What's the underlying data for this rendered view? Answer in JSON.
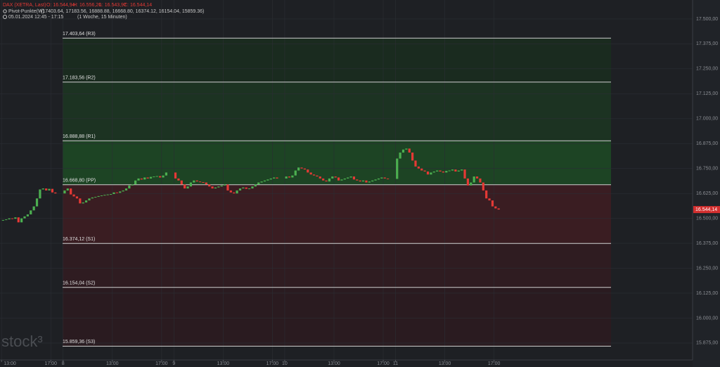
{
  "header": {
    "symbol": "DAX (XETRA, Last)",
    "open": "O: 16.544,94",
    "high": "H: 16.556,20",
    "low": "L: 16.543,97",
    "close": "C: 16.544,14",
    "indicator": "Pivot-Punkte(W)",
    "indicator_values": "(17403.64, 17183.56, 16888.88, 16668.80, 16374.12, 16154.04, 15859.36)",
    "range": "05.01.2024 12:45 - 17:15",
    "interval": "(1 Woche, 15 Minuten)",
    "watermark": "stock³"
  },
  "chart_data": {
    "type": "candlestick",
    "up_color": "#4caf50",
    "down_color": "#e53935",
    "xlim": [
      0,
      225
    ],
    "ylim": [
      15790,
      17595
    ],
    "xticks": [
      {
        "value": 0.5,
        "label": "13:00"
      },
      {
        "value": 16.5,
        "label": "17:00"
      },
      {
        "value": 20.5,
        "label": "8"
      },
      {
        "value": 36.5,
        "label": "13:00"
      },
      {
        "value": 52.5,
        "label": "17:00"
      },
      {
        "value": 56.5,
        "label": "9"
      },
      {
        "value": 72.5,
        "label": "13:00"
      },
      {
        "value": 88.5,
        "label": "17:00"
      },
      {
        "value": 92.5,
        "label": "10"
      },
      {
        "value": 108.5,
        "label": "13:00"
      },
      {
        "value": 124.5,
        "label": "17:00"
      },
      {
        "value": 128.5,
        "label": "11"
      },
      {
        "value": 144.5,
        "label": "13:00"
      },
      {
        "value": 160.5,
        "label": "17:00"
      }
    ],
    "yticks": [
      {
        "value": 17500,
        "label": "17.500,00"
      },
      {
        "value": 17375,
        "label": "17.375,00"
      },
      {
        "value": 17250,
        "label": "17.250,00"
      },
      {
        "value": 17125,
        "label": "17.125,00"
      },
      {
        "value": 17000,
        "label": "17.000,00"
      },
      {
        "value": 16875,
        "label": "16.875,00"
      },
      {
        "value": 16750,
        "label": "16.750,00"
      },
      {
        "value": 16625,
        "label": "16.625,00"
      },
      {
        "value": 16500,
        "label": "16.500,00"
      },
      {
        "value": 16375,
        "label": "16.375,00"
      },
      {
        "value": 16250,
        "label": "16.250,00"
      },
      {
        "value": 16125,
        "label": "16.125,00"
      },
      {
        "value": 16000,
        "label": "16.000,00"
      },
      {
        "value": 15875,
        "label": "15.875,00"
      }
    ],
    "grid": true,
    "x": [
      0,
      1,
      2,
      3,
      4,
      5,
      6,
      7,
      8,
      9,
      10,
      11,
      12,
      13,
      14,
      15,
      16,
      17,
      18,
      21,
      22,
      23,
      24,
      25,
      26,
      27,
      28,
      29,
      30,
      31,
      32,
      33,
      34,
      35,
      36,
      37,
      38,
      39,
      40,
      41,
      42,
      43,
      44,
      45,
      46,
      47,
      48,
      49,
      50,
      51,
      52,
      53,
      54,
      57,
      58,
      59,
      60,
      61,
      62,
      63,
      64,
      65,
      66,
      67,
      68,
      69,
      70,
      71,
      72,
      73,
      74,
      75,
      76,
      77,
      78,
      79,
      80,
      81,
      82,
      83,
      84,
      85,
      86,
      87,
      88,
      89,
      90,
      93,
      94,
      95,
      96,
      97,
      98,
      99,
      100,
      101,
      102,
      103,
      104,
      105,
      106,
      107,
      108,
      109,
      110,
      111,
      112,
      113,
      114,
      115,
      116,
      117,
      118,
      119,
      120,
      121,
      122,
      123,
      124,
      125,
      126,
      129,
      130,
      131,
      132,
      133,
      134,
      135,
      136,
      137,
      138,
      139,
      140,
      141,
      142,
      143,
      144,
      145,
      146,
      147,
      148,
      149,
      150,
      151,
      152,
      153,
      154,
      155,
      156,
      157,
      158,
      159,
      160,
      161,
      162
    ],
    "close": [
      16490,
      16492,
      16495,
      16500,
      16498,
      16505,
      16480,
      16500,
      16510,
      16520,
      16540,
      16560,
      16600,
      16645,
      16650,
      16640,
      16648,
      16630,
      16625,
      16640,
      16650,
      16620,
      16610,
      16600,
      16575,
      16580,
      16590,
      16600,
      16605,
      16608,
      16612,
      16615,
      16618,
      16620,
      16622,
      16630,
      16628,
      16635,
      16640,
      16650,
      16665,
      16670,
      16690,
      16700,
      16695,
      16705,
      16700,
      16708,
      16710,
      16712,
      16705,
      16715,
      16730,
      16700,
      16690,
      16670,
      16650,
      16660,
      16680,
      16690,
      16685,
      16682,
      16680,
      16670,
      16660,
      16650,
      16655,
      16660,
      16665,
      16670,
      16640,
      16630,
      16625,
      16640,
      16650,
      16655,
      16648,
      16650,
      16660,
      16670,
      16680,
      16685,
      16690,
      16695,
      16700,
      16705,
      16700,
      16710,
      16705,
      16715,
      16740,
      16755,
      16750,
      16745,
      16730,
      16720,
      16715,
      16710,
      16700,
      16690,
      16685,
      16700,
      16710,
      16705,
      16690,
      16695,
      16700,
      16705,
      16710,
      16695,
      16690,
      16685,
      16690,
      16680,
      16685,
      16690,
      16695,
      16700,
      16705,
      16700,
      16698,
      16800,
      16830,
      16845,
      16850,
      16830,
      16790,
      16760,
      16750,
      16740,
      16735,
      16720,
      16730,
      16735,
      16740,
      16735,
      16730,
      16738,
      16740,
      16745,
      16735,
      16740,
      16745,
      16700,
      16665,
      16680,
      16710,
      16700,
      16680,
      16640,
      16600,
      16590,
      16560,
      16550,
      16544.14
    ],
    "pivots": [
      {
        "value": 17403.64,
        "label": "17.403,64 (R3)"
      },
      {
        "value": 17183.56,
        "label": "17.183,56 (R2)"
      },
      {
        "value": 16888.88,
        "label": "16.888,88 (R1)"
      },
      {
        "value": 16668.8,
        "label": "16.668,80 (PP)"
      },
      {
        "value": 16374.12,
        "label": "16.374,12 (S1)"
      },
      {
        "value": 16154.04,
        "label": "16.154,04 (S2)"
      },
      {
        "value": 15859.36,
        "label": "15.859,36 (S3)"
      }
    ],
    "zone_fills": [
      "#1a2b1f",
      "#1c3322",
      "#1d4424",
      "#3a1d22",
      "#2f1c21",
      "#2a1b20"
    ],
    "last_price": {
      "value": 16544.14,
      "label": "16.544,14"
    }
  }
}
